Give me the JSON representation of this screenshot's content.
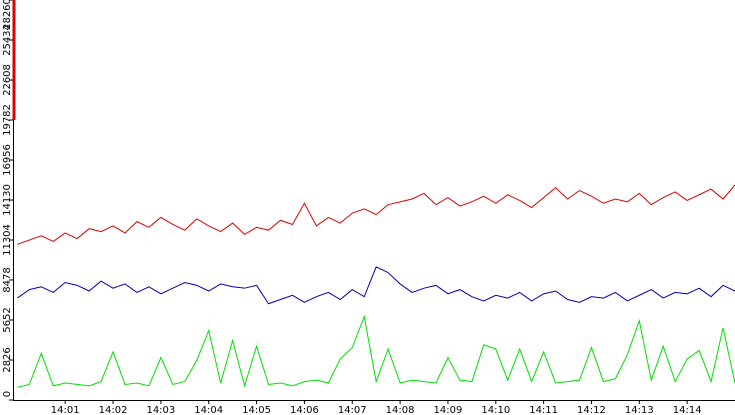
{
  "chart_data": {
    "type": "line",
    "x": [
      840,
      840.25,
      840.5,
      840.75,
      841,
      841.25,
      841.5,
      841.75,
      842,
      842.25,
      842.5,
      842.75,
      843,
      843.25,
      843.5,
      843.75,
      844,
      844.25,
      844.5,
      844.75,
      845,
      845.25,
      845.5,
      845.75,
      846,
      846.25,
      846.5,
      846.75,
      847,
      847.25,
      847.5,
      847.75,
      848,
      848.25,
      848.5,
      848.75,
      849,
      849.25,
      849.5,
      849.75,
      850,
      850.25,
      850.5,
      850.75,
      851,
      851.25,
      851.5,
      851.75,
      852,
      852.25,
      852.5,
      852.75,
      853,
      853.25,
      853.5,
      853.75,
      854,
      854.25,
      854.5,
      854.75,
      855
    ],
    "series": [
      {
        "color": "#e00000",
        "values": [
          11000,
          11300,
          11600,
          11200,
          11800,
          11400,
          12100,
          11900,
          12300,
          11800,
          12600,
          12200,
          12900,
          12400,
          12000,
          12800,
          12300,
          11900,
          12500,
          11700,
          12200,
          12000,
          12700,
          12400,
          13900,
          12300,
          12900,
          12500,
          13200,
          13500,
          13100,
          13800,
          14000,
          14200,
          14600,
          13800,
          14300,
          13700,
          14000,
          14400,
          13900,
          14500,
          14100,
          13600,
          14300,
          15000,
          14200,
          14800,
          14400,
          13900,
          14200,
          14000,
          14600,
          13800,
          14300,
          14700,
          14100,
          14500,
          14900,
          14200,
          15200
        ]
      },
      {
        "color": "#0000b0",
        "values": [
          7200,
          7800,
          8000,
          7600,
          8300,
          8100,
          7700,
          8400,
          7900,
          8200,
          7600,
          8000,
          7500,
          7900,
          8300,
          8100,
          7700,
          8200,
          8000,
          7900,
          8100,
          6800,
          7100,
          7400,
          6900,
          7300,
          7600,
          7100,
          7800,
          7300,
          9400,
          9000,
          8200,
          7600,
          7900,
          8100,
          7500,
          7800,
          7300,
          7000,
          7400,
          7200,
          7600,
          7000,
          7500,
          7700,
          7100,
          6900,
          7300,
          7200,
          7600,
          7000,
          7400,
          7800,
          7200,
          7600,
          7500,
          7900,
          7300,
          8100,
          7700
        ]
      },
      {
        "color": "#00e000",
        "values": [
          900,
          1100,
          3300,
          1000,
          1200,
          1100,
          1000,
          1300,
          3400,
          1100,
          1200,
          1000,
          3000,
          1100,
          1300,
          2800,
          4900,
          1200,
          4200,
          1000,
          3800,
          1100,
          1200,
          1000,
          1300,
          1400,
          1200,
          2900,
          3700,
          5900,
          1300,
          3600,
          1200,
          1400,
          1300,
          1200,
          3000,
          1400,
          1300,
          3900,
          3600,
          1400,
          3600,
          1300,
          3400,
          1200,
          1300,
          1400,
          3700,
          1300,
          1500,
          3200,
          5600,
          1400,
          3800,
          1300,
          2900,
          3500,
          1300,
          5100,
          1200
        ]
      }
    ],
    "xlim": [
      839.93,
      855
    ],
    "xticks": [
      {
        "value": 841,
        "label": "14:01"
      },
      {
        "value": 842,
        "label": "14:02"
      },
      {
        "value": 843,
        "label": "14:03"
      },
      {
        "value": 844,
        "label": "14:04"
      },
      {
        "value": 845,
        "label": "14:05"
      },
      {
        "value": 846,
        "label": "14:06"
      },
      {
        "value": 847,
        "label": "14:07"
      },
      {
        "value": 848,
        "label": "14:08"
      },
      {
        "value": 849,
        "label": "14:09"
      },
      {
        "value": 850,
        "label": "14:10"
      },
      {
        "value": 851,
        "label": "14:11"
      },
      {
        "value": 852,
        "label": "14:12"
      },
      {
        "value": 853,
        "label": "14:13"
      },
      {
        "value": 854,
        "label": "14:14"
      }
    ],
    "ylim": [
      0,
      28260
    ],
    "yticks": [
      0,
      2826,
      5652,
      8478,
      11304,
      14130,
      16956,
      19782,
      22608,
      25434,
      28260
    ]
  }
}
